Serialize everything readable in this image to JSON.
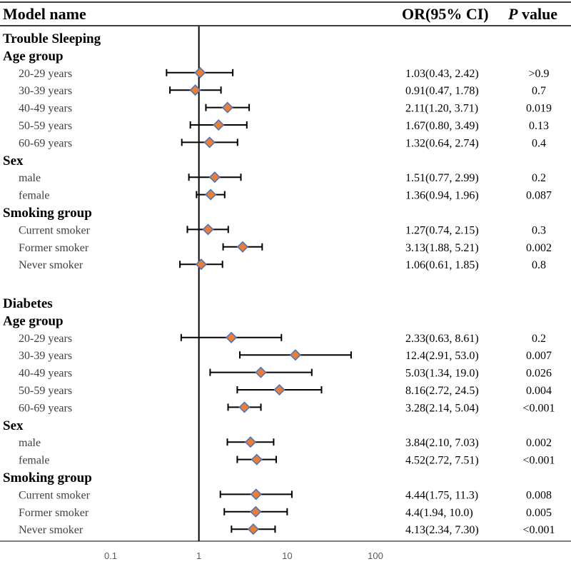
{
  "headers": {
    "model": "Model name",
    "ci": "OR(95% CI)",
    "p_italic": "P",
    "p_rest": " value"
  },
  "chart_data": {
    "type": "forest",
    "x_scale": "log",
    "xlim": [
      0.1,
      100
    ],
    "x_ticks": [
      "0.1",
      "1",
      "10",
      "100"
    ],
    "reference_line": 1,
    "marker_color": "#ED7D31",
    "marker_edge_color": "#4472C4",
    "groups": [
      {
        "title": "Trouble Sleeping",
        "subgroups": [
          {
            "title": "Age group",
            "rows": [
              {
                "label": "20-29 years",
                "or": 1.03,
                "lo": 0.43,
                "hi": 2.42,
                "ci_text": "1.03(0.43, 2.42)",
                "p": ">0.9"
              },
              {
                "label": "30-39 years",
                "or": 0.91,
                "lo": 0.47,
                "hi": 1.78,
                "ci_text": "0.91(0.47, 1.78)",
                "p": "0.7"
              },
              {
                "label": "40-49 years",
                "or": 2.11,
                "lo": 1.2,
                "hi": 3.71,
                "ci_text": "2.11(1.20, 3.71)",
                "p": "0.019"
              },
              {
                "label": "50-59 years",
                "or": 1.67,
                "lo": 0.8,
                "hi": 3.49,
                "ci_text": "1.67(0.80, 3.49)",
                "p": "0.13"
              },
              {
                "label": "60-69 years",
                "or": 1.32,
                "lo": 0.64,
                "hi": 2.74,
                "ci_text": "1.32(0.64, 2.74)",
                "p": "0.4"
              }
            ]
          },
          {
            "title": "Sex",
            "rows": [
              {
                "label": "male",
                "or": 1.51,
                "lo": 0.77,
                "hi": 2.99,
                "ci_text": "1.51(0.77, 2.99)",
                "p": "0.2"
              },
              {
                "label": "female",
                "or": 1.36,
                "lo": 0.94,
                "hi": 1.96,
                "ci_text": "1.36(0.94, 1.96)",
                "p": "0.087"
              }
            ]
          },
          {
            "title": "Smoking group",
            "rows": [
              {
                "label": "Current smoker",
                "or": 1.27,
                "lo": 0.74,
                "hi": 2.15,
                "ci_text": "1.27(0.74, 2.15)",
                "p": "0.3"
              },
              {
                "label": "Former smoker",
                "or": 3.13,
                "lo": 1.88,
                "hi": 5.21,
                "ci_text": "3.13(1.88, 5.21)",
                "p": "0.002"
              },
              {
                "label": "Never smoker",
                "or": 1.06,
                "lo": 0.61,
                "hi": 1.85,
                "ci_text": "1.06(0.61, 1.85)",
                "p": "0.8"
              }
            ]
          }
        ]
      },
      {
        "title": "Diabetes",
        "subgroups": [
          {
            "title": "Age group",
            "rows": [
              {
                "label": "20-29 years",
                "or": 2.33,
                "lo": 0.63,
                "hi": 8.61,
                "ci_text": "2.33(0.63, 8.61)",
                "p": "0.2"
              },
              {
                "label": "30-39 years",
                "or": 12.4,
                "lo": 2.91,
                "hi": 53.0,
                "ci_text": "12.4(2.91, 53.0)",
                "p": "0.007"
              },
              {
                "label": "40-49 years",
                "or": 5.03,
                "lo": 1.34,
                "hi": 19.0,
                "ci_text": "5.03(1.34, 19.0)",
                "p": "0.026"
              },
              {
                "label": "50-59 years",
                "or": 8.16,
                "lo": 2.72,
                "hi": 24.5,
                "ci_text": "8.16(2.72, 24.5)",
                "p": "0.004"
              },
              {
                "label": "60-69 years",
                "or": 3.28,
                "lo": 2.14,
                "hi": 5.04,
                "ci_text": "3.28(2.14, 5.04)",
                "p": "<0.001"
              }
            ]
          },
          {
            "title": "Sex",
            "rows": [
              {
                "label": "male",
                "or": 3.84,
                "lo": 2.1,
                "hi": 7.03,
                "ci_text": "3.84(2.10, 7.03)",
                "p": "0.002"
              },
              {
                "label": "female",
                "or": 4.52,
                "lo": 2.72,
                "hi": 7.51,
                "ci_text": "4.52(2.72, 7.51)",
                "p": "<0.001"
              }
            ]
          },
          {
            "title": "Smoking group",
            "rows": [
              {
                "label": "Current smoker",
                "or": 4.44,
                "lo": 1.75,
                "hi": 11.3,
                "ci_text": "4.44(1.75, 11.3)",
                "p": "0.008"
              },
              {
                "label": "Former smoker",
                "or": 4.4,
                "lo": 1.94,
                "hi": 10.0,
                "ci_text": "4.4(1.94, 10.0)",
                "p": "0.005"
              },
              {
                "label": "Never smoker",
                "or": 4.13,
                "lo": 2.34,
                "hi": 7.3,
                "ci_text": "4.13(2.34, 7.30)",
                "p": "<0.001"
              }
            ]
          }
        ]
      }
    ]
  }
}
